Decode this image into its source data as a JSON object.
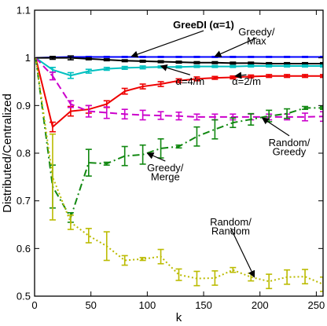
{
  "chart_data": {
    "type": "line",
    "title": "",
    "xlabel": "k",
    "ylabel": "Distributed/Centralized",
    "xlim": [
      0,
      256
    ],
    "ylim": [
      0.5,
      1.1
    ],
    "xticks": [
      0,
      50,
      100,
      150,
      200,
      250
    ],
    "yticks": [
      0.5,
      0.6,
      0.7,
      0.8,
      0.9,
      1.0,
      1.1
    ],
    "x": [
      1,
      16,
      32,
      48,
      64,
      80,
      96,
      112,
      128,
      144,
      160,
      176,
      192,
      208,
      224,
      240,
      256
    ],
    "series": [
      {
        "key": "greedy_max",
        "color": "#0000ff",
        "dash": "solid",
        "width": 2,
        "values": [
          1.0,
          1.001,
          1.002,
          1.002,
          1.002,
          1.002,
          1.002,
          1.002,
          1.002,
          1.002,
          1.002,
          1.002,
          1.002,
          1.002,
          1.002,
          1.002,
          1.002
        ],
        "errors": [
          0,
          0.001,
          0.002,
          0.001,
          0.001,
          0.001,
          0.001,
          0.001,
          0.001,
          0.001,
          0.001,
          0.001,
          0.001,
          0.001,
          0.001,
          0.001,
          0.001
        ]
      },
      {
        "key": "greedi_alpha1",
        "color": "#000000",
        "dash": "solid",
        "width": 2,
        "values": [
          1.0,
          1.0,
          1.0,
          0.998,
          0.996,
          0.994,
          0.993,
          0.992,
          0.991,
          0.99,
          0.99,
          0.989,
          0.989,
          0.988,
          0.988,
          0.988,
          0.988
        ],
        "errors": [
          0,
          0.003,
          0.004,
          0.002,
          0.002,
          0.002,
          0.002,
          0.002,
          0.002,
          0.002,
          0.002,
          0.002,
          0.002,
          0.002,
          0.002,
          0.002,
          0.002
        ]
      },
      {
        "key": "alpha_4m",
        "color": "#00c0c0",
        "dash": "solid",
        "width": 2,
        "values": [
          1.0,
          0.975,
          0.963,
          0.972,
          0.977,
          0.979,
          0.98,
          0.981,
          0.981,
          0.982,
          0.982,
          0.982,
          0.983,
          0.983,
          0.983,
          0.983,
          0.983
        ],
        "errors": [
          0,
          0.005,
          0.006,
          0.004,
          0.003,
          0.003,
          0.003,
          0.002,
          0.002,
          0.002,
          0.002,
          0.002,
          0.002,
          0.002,
          0.002,
          0.002,
          0.002
        ]
      },
      {
        "key": "alpha_2m",
        "color": "#ee0000",
        "dash": "solid",
        "width": 2,
        "values": [
          1.0,
          0.855,
          0.888,
          0.892,
          0.903,
          0.93,
          0.94,
          0.945,
          0.952,
          0.956,
          0.958,
          0.959,
          0.961,
          0.962,
          0.962,
          0.962,
          0.962
        ],
        "errors": [
          0,
          0.01,
          0.01,
          0.008,
          0.007,
          0.006,
          0.005,
          0.005,
          0.004,
          0.004,
          0.003,
          0.003,
          0.003,
          0.003,
          0.003,
          0.003,
          0.003
        ]
      },
      {
        "key": "random_greedy",
        "color": "#cc00cc",
        "dash": "dash",
        "width": 2,
        "values": [
          1.0,
          0.962,
          0.903,
          0.888,
          0.885,
          0.882,
          0.88,
          0.879,
          0.878,
          0.876,
          0.876,
          0.876,
          0.876,
          0.876,
          0.876,
          0.876,
          0.877
        ],
        "errors": [
          0,
          0.008,
          0.007,
          0.012,
          0.012,
          0.01,
          0.01,
          0.008,
          0.008,
          0.006,
          0.006,
          0.006,
          0.006,
          0.006,
          0.006,
          0.008,
          0.01
        ]
      },
      {
        "key": "greedy_merge",
        "color": "#118811",
        "dash": "dashdot",
        "width": 2,
        "values": [
          1.0,
          0.73,
          0.665,
          0.78,
          0.778,
          0.794,
          0.797,
          0.81,
          0.814,
          0.835,
          0.85,
          0.864,
          0.871,
          0.878,
          0.883,
          0.895,
          0.895
        ],
        "errors": [
          0,
          0.045,
          0.01,
          0.028,
          0.003,
          0.02,
          0.02,
          0.02,
          0.003,
          0.02,
          0.02,
          0.01,
          0.012,
          0.012,
          0.01,
          0.003,
          0.003
        ]
      },
      {
        "key": "random_random",
        "color": "#bbbb00",
        "dash": "dot",
        "width": 2,
        "values": [
          1.0,
          0.75,
          0.655,
          0.627,
          0.605,
          0.575,
          0.578,
          0.583,
          0.545,
          0.537,
          0.538,
          0.555,
          0.54,
          0.531,
          0.54,
          0.541,
          0.525
        ],
        "errors": [
          0,
          0.09,
          0.015,
          0.015,
          0.03,
          0.01,
          0.003,
          0.015,
          0.012,
          0.015,
          0.015,
          0.005,
          0.008,
          0.015,
          0.015,
          0.015,
          0.015
        ]
      }
    ],
    "annotations": [
      {
        "text": "GreeDI (α=1)",
        "bold": true,
        "tx": 150,
        "ty": 1.062,
        "ax": 86,
        "ay": 1.003
      },
      {
        "text": "Greedy/",
        "tx": 197,
        "ty": 1.047,
        "ax": 160,
        "ay": 1.003
      },
      {
        "text": "Max",
        "tx": 197,
        "ty": 1.028
      },
      {
        "text": "α=4/m",
        "tx": 138,
        "ty": 0.943,
        "ax": 112,
        "ay": 0.983
      },
      {
        "text": "α=2/m",
        "tx": 188,
        "ty": 0.943,
        "ax": 178,
        "ay": 0.962
      },
      {
        "text": "Random/",
        "tx": 226,
        "ty": 0.815,
        "ax": 202,
        "ay": 0.874
      },
      {
        "text": "Greedy",
        "tx": 226,
        "ty": 0.796
      },
      {
        "text": "Greedy/",
        "tx": 116,
        "ty": 0.762,
        "ax": 100,
        "ay": 0.8
      },
      {
        "text": "Merge",
        "tx": 116,
        "ty": 0.743
      },
      {
        "text": "Random/",
        "tx": 174,
        "ty": 0.648,
        "ax": 195,
        "ay": 0.54
      },
      {
        "text": "Random",
        "tx": 174,
        "ty": 0.629
      }
    ]
  }
}
